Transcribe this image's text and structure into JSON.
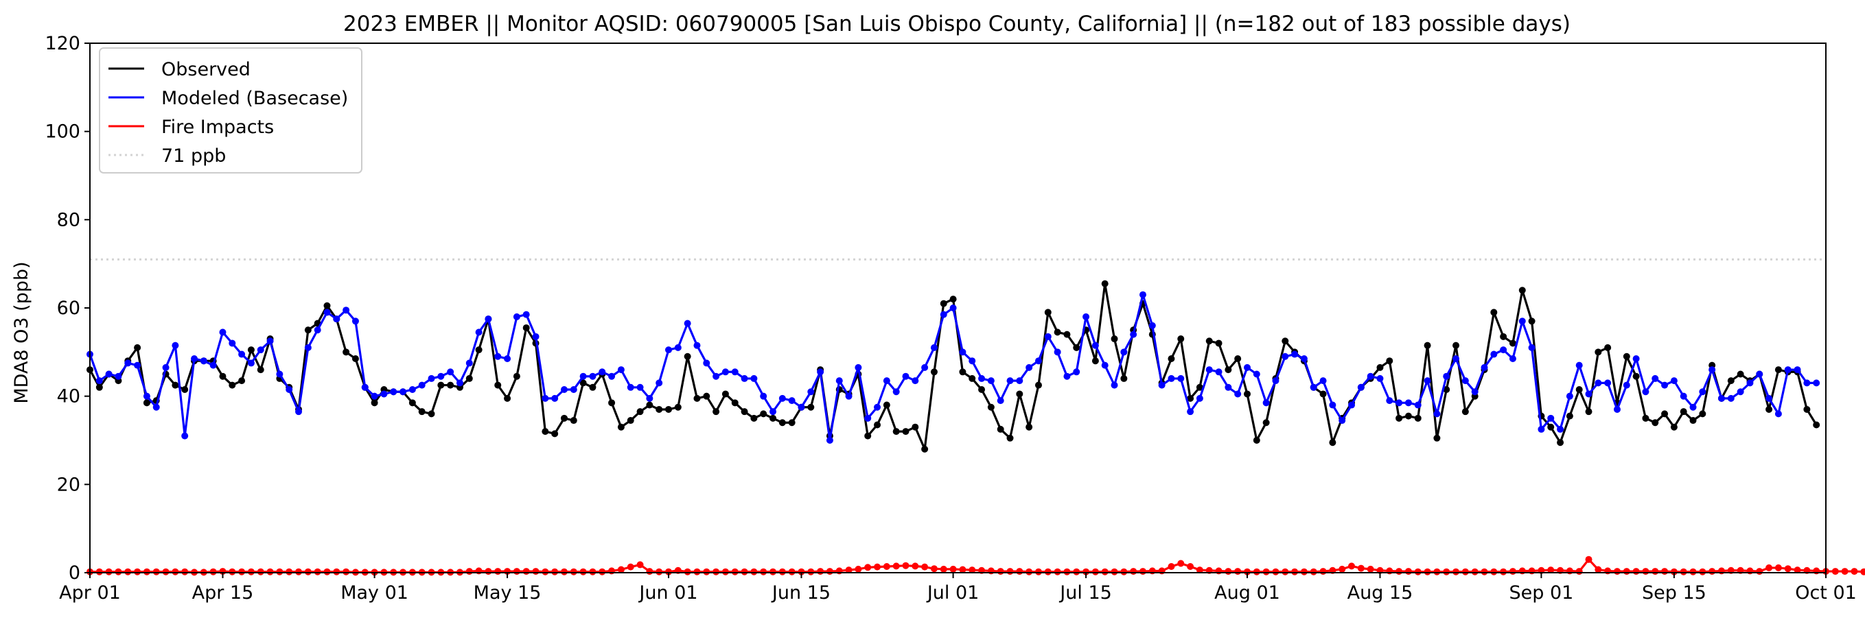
{
  "chart_data": {
    "type": "line",
    "title": "2023 EMBER || Monitor AQSID: 060790005 [San Luis Obispo County, California] || (n=182 out of 183 possible days)",
    "xlabel": "",
    "ylabel": "MDA8 O3 (ppb)",
    "x_start": "2023-04-01",
    "x_end": "2023-10-01",
    "xlim": [
      "2023-04-01",
      "2023-10-01"
    ],
    "ylim": [
      0,
      120
    ],
    "x_ticks": [
      {
        "date": "2023-04-01",
        "label": "Apr 01"
      },
      {
        "date": "2023-04-15",
        "label": "Apr 15"
      },
      {
        "date": "2023-05-01",
        "label": "May 01"
      },
      {
        "date": "2023-05-15",
        "label": "May 15"
      },
      {
        "date": "2023-06-01",
        "label": "Jun 01"
      },
      {
        "date": "2023-06-15",
        "label": "Jun 15"
      },
      {
        "date": "2023-07-01",
        "label": "Jul 01"
      },
      {
        "date": "2023-07-15",
        "label": "Jul 15"
      },
      {
        "date": "2023-08-01",
        "label": "Aug 01"
      },
      {
        "date": "2023-08-15",
        "label": "Aug 15"
      },
      {
        "date": "2023-09-01",
        "label": "Sep 01"
      },
      {
        "date": "2023-09-15",
        "label": "Sep 15"
      },
      {
        "date": "2023-10-01",
        "label": "Oct 01"
      }
    ],
    "y_ticks": [
      0,
      20,
      40,
      60,
      80,
      100,
      120
    ],
    "grid": false,
    "legend_position": "top-left",
    "reference_line": {
      "value": 71,
      "label": "71 ppb",
      "color": "#d3d3d3",
      "style": "dotted"
    },
    "series": [
      {
        "name": "Observed",
        "color": "#000000",
        "values": [
          46,
          42,
          45,
          43.5,
          48,
          51,
          38.5,
          39,
          45,
          42.5,
          41.5,
          48,
          48,
          48,
          44.5,
          42.5,
          43.5,
          50.5,
          46,
          53,
          44,
          42,
          37,
          55,
          56.5,
          60.5,
          57.5,
          50,
          48.5,
          42,
          38.5,
          41.5,
          41,
          41,
          38.5,
          36.5,
          36,
          42.5,
          42.5,
          42,
          44,
          50.5,
          57.5,
          42.5,
          39.5,
          44.5,
          55.5,
          52,
          32,
          31.5,
          35,
          34.5,
          43,
          42,
          45,
          38.5,
          33,
          34.5,
          36.5,
          38,
          37,
          37,
          37.5,
          49,
          39.5,
          40,
          36.5,
          40.5,
          38.5,
          36.5,
          35,
          36,
          35,
          34,
          34,
          37.5,
          37.5,
          46,
          31,
          41.5,
          40.5,
          45,
          31,
          33.5,
          38,
          32,
          32,
          33,
          28,
          45.5,
          61,
          62,
          45.5,
          44,
          41.5,
          37.5,
          32.5,
          30.5,
          40.5,
          33,
          42.5,
          59,
          54.5,
          54,
          51,
          55,
          48,
          65.5,
          53,
          44,
          55,
          61,
          54,
          43,
          48.5,
          53,
          39.5,
          42,
          52.5,
          52,
          46,
          48.5,
          40.5,
          30,
          34,
          44,
          52.5,
          50,
          48,
          42,
          40.5,
          29.5,
          35,
          38.5,
          42,
          44,
          46.5,
          48,
          35,
          35.5,
          35,
          51.5,
          30.5,
          41.5,
          51.5,
          36.5,
          40,
          46,
          59,
          53.5,
          52,
          64,
          57,
          35.5,
          33,
          29.5,
          35.5,
          41.5,
          36.5,
          50,
          51,
          38.5,
          49,
          44.5,
          35,
          34,
          36,
          33,
          36.5,
          34.5,
          36,
          47,
          39.5,
          43.5,
          45,
          43.5,
          45,
          37,
          46,
          45.5,
          45.5,
          37,
          33.5
        ]
      },
      {
        "name": "Modeled (Basecase)",
        "color": "#0000ff",
        "values": [
          49.5,
          43.5,
          45,
          44.5,
          47.5,
          47,
          40,
          37.5,
          46.5,
          51.5,
          31,
          48.5,
          48,
          47,
          54.5,
          52,
          49.5,
          47.5,
          50.5,
          52.5,
          45,
          41.5,
          36.5,
          51,
          55,
          59,
          57.5,
          59.5,
          57,
          42,
          40,
          40.5,
          41,
          41,
          41.5,
          42.5,
          44,
          44.5,
          45.5,
          43,
          47.5,
          54.5,
          57.5,
          49,
          48.5,
          58,
          58.5,
          53.5,
          39.5,
          39.5,
          41.5,
          41.5,
          44.5,
          44.5,
          45.5,
          44.5,
          46,
          42,
          42,
          39.5,
          43,
          50.5,
          51,
          56.5,
          51.5,
          47.5,
          44.5,
          45.5,
          45.5,
          44,
          44,
          40,
          36.5,
          39.5,
          39,
          37.5,
          41,
          45.5,
          30,
          43.5,
          40,
          46.5,
          35,
          37.5,
          43.5,
          41,
          44.5,
          43.5,
          46.5,
          51,
          58.5,
          60,
          50,
          48,
          44,
          43.5,
          39,
          43.5,
          43.5,
          46.5,
          48,
          53.5,
          50,
          44.5,
          45.5,
          58,
          51.5,
          47,
          42.5,
          50,
          54,
          63,
          56,
          42.5,
          44,
          44,
          36.5,
          39.5,
          46,
          45.5,
          42,
          40.5,
          46.5,
          45,
          38.5,
          43.5,
          49,
          49.5,
          48.5,
          42,
          43.5,
          38,
          34.5,
          38,
          42,
          44.5,
          44,
          39,
          38.5,
          38.5,
          38,
          43.5,
          36,
          44.5,
          48.5,
          43.5,
          41,
          46.5,
          49.5,
          50.5,
          48.5,
          57,
          51,
          32.5,
          35,
          32.5,
          40,
          47,
          40.5,
          43,
          43,
          37,
          42.5,
          48.5,
          41,
          44,
          42.5,
          43.5,
          40,
          37.5,
          41,
          46,
          39.5,
          39.5,
          41,
          43,
          45,
          39.5,
          36,
          46,
          46,
          43,
          43
        ]
      },
      {
        "name": "Fire Impacts",
        "color": "#ff0000",
        "values": [
          0.2,
          0.2,
          0.2,
          0.2,
          0.2,
          0.2,
          0.2,
          0.2,
          0.2,
          0.2,
          0.2,
          0.1,
          0.1,
          0.2,
          0.3,
          0.2,
          0.2,
          0.2,
          0.2,
          0.2,
          0.2,
          0.2,
          0.2,
          0.2,
          0.2,
          0.2,
          0.2,
          0.2,
          0.1,
          0.1,
          0.1,
          0.1,
          0.1,
          0.1,
          0.1,
          0.1,
          0.1,
          0.1,
          0.1,
          0.1,
          0.3,
          0.4,
          0.3,
          0.3,
          0.3,
          0.3,
          0.3,
          0.3,
          0.2,
          0.2,
          0.2,
          0.2,
          0.2,
          0.2,
          0.2,
          0.4,
          0.7,
          1.3,
          1.8,
          0.3,
          0.2,
          0.2,
          0.5,
          0.2,
          0.2,
          0.2,
          0.2,
          0.2,
          0.2,
          0.2,
          0.2,
          0.2,
          0.2,
          0.2,
          0.2,
          0.2,
          0.2,
          0.3,
          0.3,
          0.4,
          0.6,
          0.8,
          1.2,
          1.3,
          1.4,
          1.5,
          1.6,
          1.5,
          1.3,
          0.9,
          0.8,
          0.8,
          0.7,
          0.6,
          0.5,
          0.4,
          0.3,
          0.3,
          0.3,
          0.2,
          0.2,
          0.2,
          0.2,
          0.2,
          0.2,
          0.2,
          0.2,
          0.2,
          0.2,
          0.2,
          0.3,
          0.3,
          0.4,
          0.4,
          1.4,
          2.1,
          1.4,
          0.6,
          0.5,
          0.4,
          0.3,
          0.3,
          0.2,
          0.2,
          0.2,
          0.2,
          0.2,
          0.2,
          0.2,
          0.2,
          0.3,
          0.5,
          0.8,
          1.5,
          1.0,
          0.8,
          0.5,
          0.4,
          0.3,
          0.3,
          0.2,
          0.2,
          0.2,
          0.2,
          0.2,
          0.2,
          0.2,
          0.2,
          0.2,
          0.2,
          0.3,
          0.4,
          0.4,
          0.5,
          0.6,
          0.5,
          0.4,
          0.3,
          3.0,
          0.7,
          0.4,
          0.3,
          0.3,
          0.3,
          0.3,
          0.3,
          0.3,
          0.2,
          0.2,
          0.2,
          0.2,
          0.3,
          0.4,
          0.5,
          0.5,
          0.4,
          0.3,
          1.1,
          1.1,
          0.9,
          0.6,
          0.5,
          0.4,
          0.3,
          0.3,
          0.3,
          0.3,
          0.2
        ]
      }
    ]
  }
}
